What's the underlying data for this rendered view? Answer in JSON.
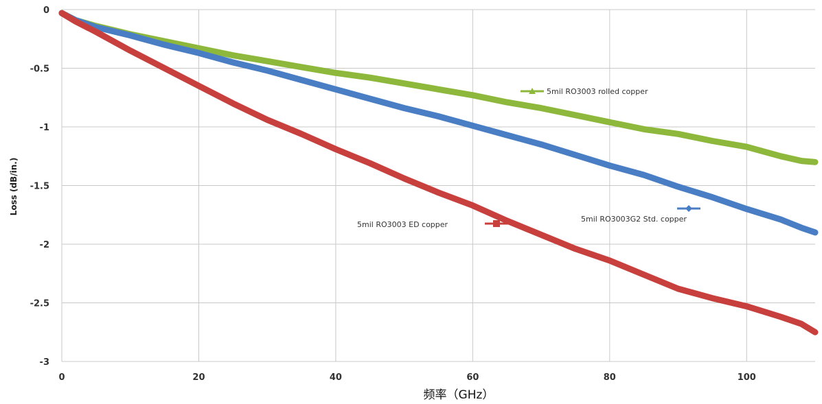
{
  "chart_data": {
    "type": "line",
    "title": "",
    "xlabel": "频率（GHz）",
    "ylabel": "Loss (dB/in.)",
    "xlim": [
      0,
      110
    ],
    "ylim": [
      -3,
      0
    ],
    "x_ticks": [
      0,
      20,
      40,
      60,
      80,
      100
    ],
    "y_ticks": [
      0,
      -0.5,
      -1,
      -1.5,
      -2,
      -2.5,
      -3
    ],
    "y_tick_labels": [
      "0",
      "-0.5",
      "-1",
      "-1.5",
      "-2",
      "-2.5",
      "-3"
    ],
    "grid": true,
    "series": [
      {
        "name": "5mil RO3003 rolled copper",
        "color": "#8db83c",
        "marker": "triangle",
        "x": [
          0,
          2,
          5,
          10,
          15,
          20,
          25,
          30,
          35,
          40,
          45,
          50,
          55,
          60,
          65,
          70,
          75,
          80,
          85,
          90,
          95,
          100,
          105,
          108,
          110
        ],
        "y": [
          -0.03,
          -0.09,
          -0.14,
          -0.21,
          -0.27,
          -0.33,
          -0.39,
          -0.44,
          -0.49,
          -0.54,
          -0.58,
          -0.63,
          -0.68,
          -0.73,
          -0.79,
          -0.84,
          -0.9,
          -0.96,
          -1.02,
          -1.06,
          -1.12,
          -1.17,
          -1.25,
          -1.29,
          -1.3
        ]
      },
      {
        "name": "5mil RO3003G2 Std. copper",
        "color": "#4a7ec4",
        "marker": "diamond",
        "x": [
          0,
          2,
          5,
          10,
          15,
          20,
          25,
          30,
          35,
          40,
          45,
          50,
          55,
          60,
          65,
          70,
          75,
          80,
          85,
          90,
          95,
          100,
          105,
          108,
          110
        ],
        "y": [
          -0.03,
          -0.09,
          -0.15,
          -0.22,
          -0.3,
          -0.37,
          -0.45,
          -0.52,
          -0.6,
          -0.68,
          -0.76,
          -0.84,
          -0.91,
          -0.99,
          -1.07,
          -1.15,
          -1.24,
          -1.33,
          -1.41,
          -1.51,
          -1.6,
          -1.7,
          -1.79,
          -1.86,
          -1.9
        ]
      },
      {
        "name": "5mil RO3003 ED copper",
        "color": "#c8403d",
        "marker": "square",
        "x": [
          0,
          2,
          5,
          10,
          15,
          20,
          25,
          30,
          35,
          40,
          45,
          50,
          55,
          60,
          65,
          70,
          75,
          80,
          85,
          90,
          95,
          100,
          105,
          108,
          110
        ],
        "y": [
          -0.03,
          -0.1,
          -0.19,
          -0.35,
          -0.5,
          -0.65,
          -0.8,
          -0.94,
          -1.06,
          -1.19,
          -1.31,
          -1.44,
          -1.56,
          -1.67,
          -1.8,
          -1.92,
          -2.04,
          -2.14,
          -2.26,
          -2.38,
          -2.46,
          -2.53,
          -2.62,
          -2.68,
          -2.75
        ]
      }
    ],
    "legend": [
      {
        "text": "5mil RO3003 rolled copper",
        "series": 0
      },
      {
        "text": "5mil RO3003G2 Std. copper",
        "series": 1
      },
      {
        "text": "5mil RO3003 ED copper",
        "series": 2
      }
    ]
  }
}
